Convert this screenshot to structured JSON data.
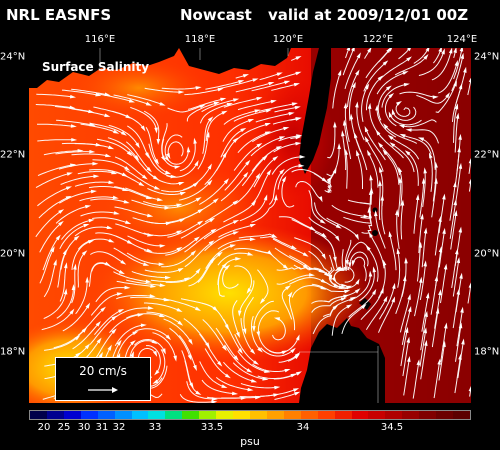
{
  "header": {
    "model": "NRL EASNFS",
    "product": "Nowcast",
    "valid": "valid at 2009/12/01 00Z"
  },
  "panel_label": "Surface Salinity",
  "lon_labels": [
    "116°E",
    "118°E",
    "120°E",
    "122°E",
    "124°E"
  ],
  "lat_labels": [
    "24°N",
    "22°N",
    "20°N",
    "18°N"
  ],
  "scale": {
    "text": "20 cm/s"
  },
  "colorbar": {
    "labels": [
      "20",
      "25",
      "30",
      "31",
      "32",
      "33",
      "33.5",
      "34",
      "34.5"
    ],
    "unit": "psu",
    "colors": [
      "#00004a",
      "#000090",
      "#0000d0",
      "#0030ff",
      "#0060ff",
      "#0090ff",
      "#00c0ff",
      "#00e0e0",
      "#00e080",
      "#40e000",
      "#a0f000",
      "#e8f000",
      "#ffe000",
      "#ffc000",
      "#ffa000",
      "#ff8000",
      "#ff6000",
      "#ff4000",
      "#f02000",
      "#e00000",
      "#c80000",
      "#b00000",
      "#980000",
      "#800000",
      "#6c0000",
      "#5c0000"
    ]
  },
  "legend_colors": {
    "land": "#000000",
    "currents": "#ffffff"
  }
}
